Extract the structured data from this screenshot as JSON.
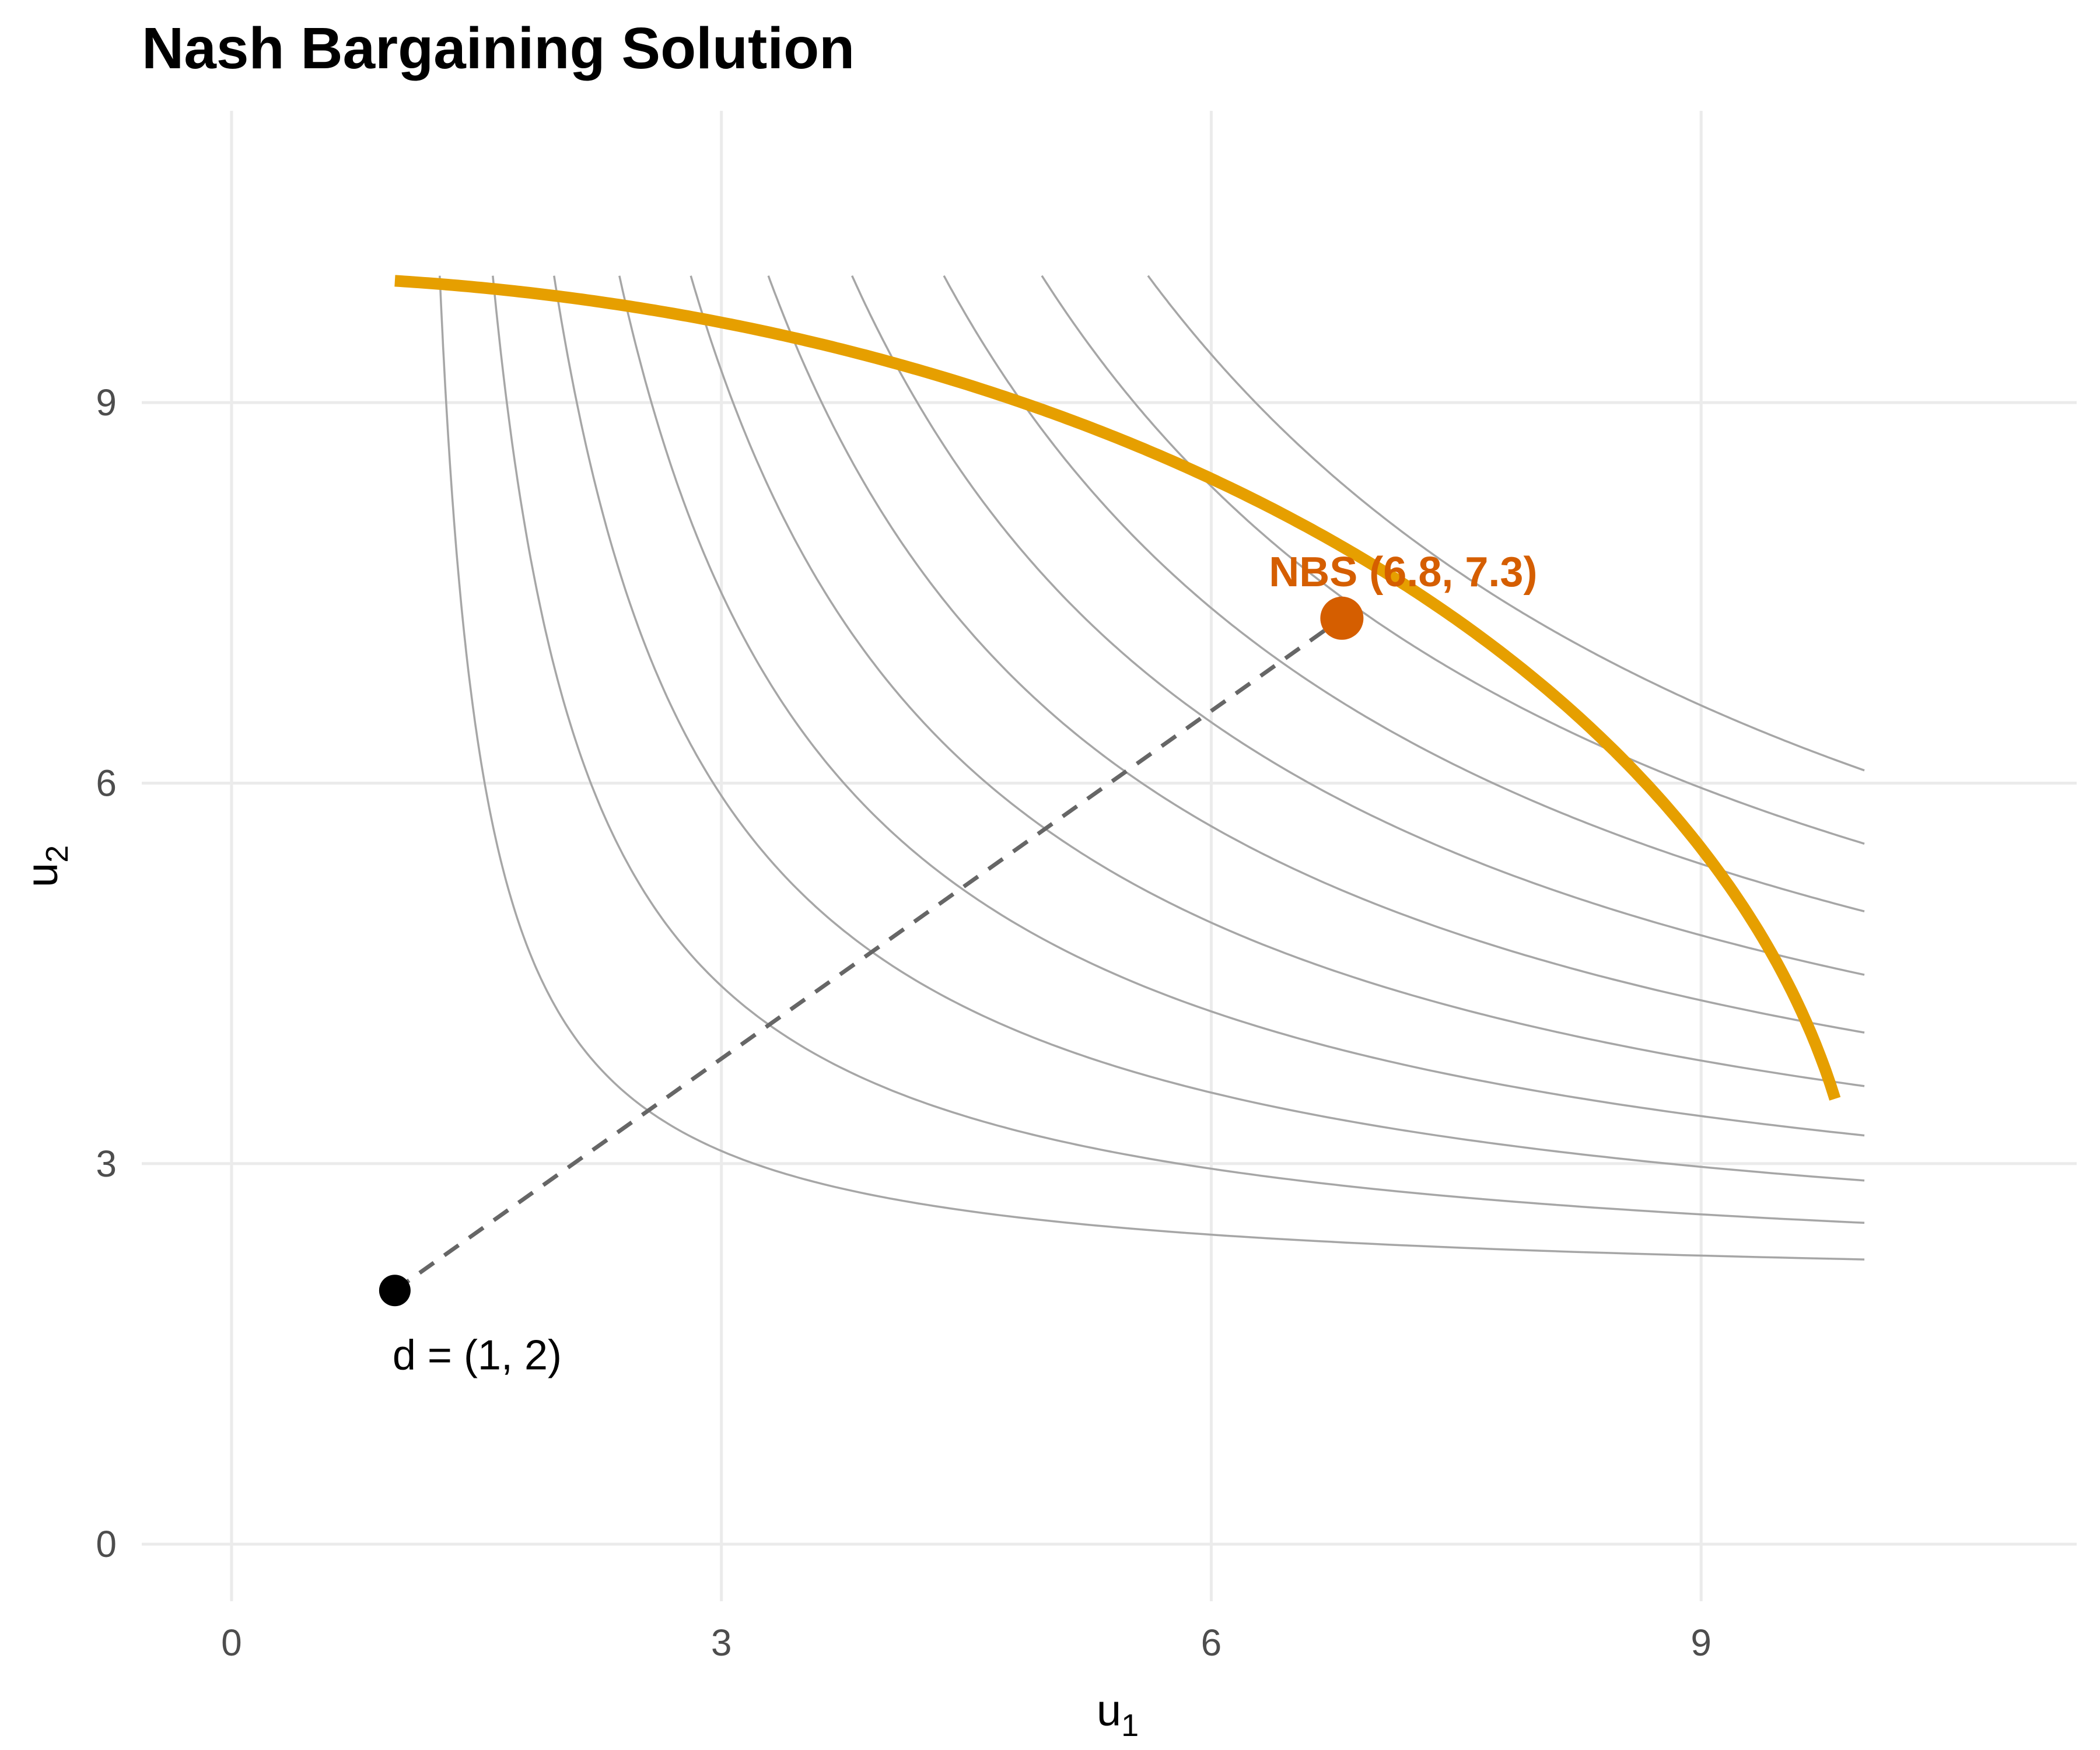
{
  "chart_data": {
    "type": "line",
    "title": "Nash Bargaining Solution",
    "xlabel": {
      "base": "u",
      "sub": "1"
    },
    "ylabel": {
      "base": "u",
      "sub": "2"
    },
    "xlim": [
      -0.55,
      11.3
    ],
    "ylim": [
      -0.45,
      11.3
    ],
    "x_ticks": [
      0,
      3,
      6,
      9
    ],
    "y_ticks": [
      0,
      3,
      6,
      9
    ],
    "x_tick_labels": [
      "0",
      "3",
      "6",
      "9"
    ],
    "y_tick_labels": [
      "0",
      "3",
      "6",
      "9"
    ],
    "grid": true,
    "frontier": {
      "description": "Pareto frontier of the feasible set",
      "equation": "(u1/10)^2 + ((u2-2)/8)^2 = 1",
      "u1_max": 10,
      "u2_min": 2,
      "u2_range": 8,
      "x_from": 1.0,
      "x_to": 9.82,
      "color": "#E69F00"
    },
    "disagreement_point": {
      "x": 1,
      "y": 2,
      "label": "d = (1, 2)",
      "color": "#000000"
    },
    "nbs_point": {
      "x": 6.8,
      "y": 7.3,
      "label": "NBS (6.8, 7.3)",
      "color": "#D55E00"
    },
    "nash_product_contours": {
      "description": "Level curves (u1 - 1)(u2 - 2) = c",
      "levels": [
        2.2,
        4.8,
        7.8,
        11.0,
        14.5,
        18.3,
        22.4,
        26.9,
        31.7,
        36.9
      ],
      "x_max": 10,
      "y_max": 10,
      "color": "#a6a6a6"
    },
    "connector": {
      "from": [
        1,
        2
      ],
      "to": [
        6.8,
        7.3
      ],
      "style": "dashed",
      "color": "#666666"
    }
  }
}
